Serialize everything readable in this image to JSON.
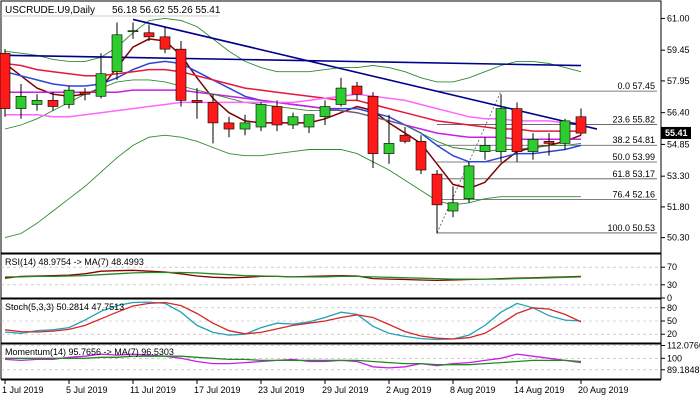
{
  "chart_data": {
    "type": "candlestick",
    "header": {
      "symbol": "USCRUDE.U9,Daily",
      "ohlc": "56.18 56.62 55.26 55.41"
    },
    "price_axis_labels": [
      "61.00",
      "59.45",
      "57.95",
      "56.40",
      "54.85",
      "53.30",
      "51.80",
      "50.30"
    ],
    "current_price_label": "55.41",
    "x_tick_labels": [
      {
        "i": 0,
        "label": "1 Jul 2019"
      },
      {
        "i": 4,
        "label": "5 Jul 2019"
      },
      {
        "i": 8,
        "label": "11 Jul 2019"
      },
      {
        "i": 12,
        "label": "17 Jul 2019"
      },
      {
        "i": 16,
        "label": "23 Jul 2019"
      },
      {
        "i": 20,
        "label": "29 Jul 2019"
      },
      {
        "i": 24,
        "label": "2 Aug 2019"
      },
      {
        "i": 28,
        "label": "8 Aug 2019"
      },
      {
        "i": 32,
        "label": "14 Aug 2019"
      },
      {
        "i": 36,
        "label": "20 Aug 2019"
      }
    ],
    "candles": [
      {
        "o": 59.3,
        "h": 59.5,
        "l": 56.2,
        "c": 56.6
      },
      {
        "o": 56.6,
        "h": 57.8,
        "l": 56.1,
        "c": 57.2
      },
      {
        "o": 56.8,
        "h": 57.3,
        "l": 56.5,
        "c": 57.0
      },
      {
        "o": 57.0,
        "h": 57.4,
        "l": 56.5,
        "c": 56.7
      },
      {
        "o": 56.8,
        "h": 57.7,
        "l": 56.6,
        "c": 57.5
      },
      {
        "o": 57.4,
        "h": 57.6,
        "l": 57.0,
        "c": 57.3
      },
      {
        "o": 57.2,
        "h": 59.3,
        "l": 57.1,
        "c": 58.3
      },
      {
        "o": 58.4,
        "h": 60.8,
        "l": 58.0,
        "c": 60.2
      },
      {
        "o": 60.4,
        "h": 60.8,
        "l": 60.0,
        "c": 60.4
      },
      {
        "o": 60.3,
        "h": 60.7,
        "l": 59.9,
        "c": 60.1
      },
      {
        "o": 60.1,
        "h": 60.6,
        "l": 59.3,
        "c": 59.5
      },
      {
        "o": 59.5,
        "h": 59.9,
        "l": 56.7,
        "c": 57.0
      },
      {
        "o": 57.0,
        "h": 57.6,
        "l": 56.1,
        "c": 56.9
      },
      {
        "o": 56.9,
        "h": 57.3,
        "l": 54.9,
        "c": 55.9
      },
      {
        "o": 55.9,
        "h": 56.2,
        "l": 55.2,
        "c": 55.6
      },
      {
        "o": 55.6,
        "h": 56.3,
        "l": 55.3,
        "c": 55.9
      },
      {
        "o": 55.7,
        "h": 56.9,
        "l": 55.5,
        "c": 56.8
      },
      {
        "o": 56.7,
        "h": 57.0,
        "l": 55.5,
        "c": 55.8
      },
      {
        "o": 55.8,
        "h": 56.4,
        "l": 55.6,
        "c": 56.2
      },
      {
        "o": 55.7,
        "h": 56.3,
        "l": 55.4,
        "c": 56.3
      },
      {
        "o": 56.2,
        "h": 57.0,
        "l": 55.8,
        "c": 56.7
      },
      {
        "o": 56.8,
        "h": 58.1,
        "l": 56.7,
        "c": 57.6
      },
      {
        "o": 57.7,
        "h": 57.9,
        "l": 57.0,
        "c": 57.3
      },
      {
        "o": 57.2,
        "h": 57.4,
        "l": 53.7,
        "c": 54.4
      },
      {
        "o": 54.4,
        "h": 56.3,
        "l": 53.9,
        "c": 54.9
      },
      {
        "o": 55.3,
        "h": 55.7,
        "l": 54.9,
        "c": 55.0
      },
      {
        "o": 55.0,
        "h": 55.3,
        "l": 53.4,
        "c": 53.6
      },
      {
        "o": 53.4,
        "h": 53.6,
        "l": 50.5,
        "c": 51.9
      },
      {
        "o": 51.6,
        "h": 52.8,
        "l": 51.3,
        "c": 52.0
      },
      {
        "o": 52.2,
        "h": 54.0,
        "l": 52.0,
        "c": 53.8
      },
      {
        "o": 54.5,
        "h": 55.2,
        "l": 54.1,
        "c": 54.8
      },
      {
        "o": 54.5,
        "h": 57.3,
        "l": 54.0,
        "c": 56.6
      },
      {
        "o": 56.6,
        "h": 56.9,
        "l": 54.0,
        "c": 54.5
      },
      {
        "o": 54.5,
        "h": 55.4,
        "l": 54.1,
        "c": 55.1
      },
      {
        "o": 55.0,
        "h": 55.4,
        "l": 54.3,
        "c": 54.9
      },
      {
        "o": 54.9,
        "h": 56.1,
        "l": 54.6,
        "c": 56.0
      },
      {
        "o": 56.2,
        "h": 56.6,
        "l": 55.3,
        "c": 55.4
      }
    ],
    "fib_levels": [
      {
        "price": 57.45,
        "label": "0.0 57.45"
      },
      {
        "price": 55.82,
        "label": "23.6 55.82"
      },
      {
        "price": 54.81,
        "label": "38.2 54.81"
      },
      {
        "price": 53.99,
        "label": "50.0 53.99"
      },
      {
        "price": 53.17,
        "label": "61.8 53.17"
      },
      {
        "price": 52.16,
        "label": "76.4 52.16"
      },
      {
        "price": 50.53,
        "label": "100.0 50.53"
      }
    ],
    "trendlines": [
      {
        "name": "downtrend",
        "color": "#00008b",
        "from": {
          "i": 8,
          "price": 60.95
        },
        "to": {
          "i": 37,
          "price": 55.6
        }
      },
      {
        "name": "horizontal",
        "color": "#00008b",
        "from": {
          "i": 0,
          "price": 59.2
        },
        "to": {
          "i": 36,
          "price": 58.7
        }
      }
    ],
    "overlays": [
      {
        "color": "#800000",
        "values": [
          58.8,
          58.2,
          57.6,
          57.3,
          57.2,
          57.3,
          57.6,
          58.6,
          59.6,
          60.0,
          59.9,
          59.2,
          58.1,
          57.1,
          56.4,
          56.0,
          55.9,
          55.9,
          55.9,
          55.9,
          56.1,
          56.4,
          56.7,
          56.5,
          55.9,
          55.4,
          54.9,
          53.9,
          52.9,
          52.7,
          53.0,
          53.9,
          54.5,
          54.7,
          54.8,
          55.0,
          55.3
        ]
      },
      {
        "color": "#2b46d6",
        "values": [
          58.4,
          58.2,
          58.0,
          57.8,
          57.7,
          57.7,
          57.8,
          58.1,
          58.5,
          58.8,
          58.9,
          58.8,
          58.4,
          58.0,
          57.6,
          57.2,
          57.0,
          56.9,
          56.8,
          56.7,
          56.6,
          56.6,
          56.6,
          56.4,
          56.2,
          55.8,
          55.4,
          54.8,
          54.3,
          54.0,
          54.0,
          54.2,
          54.4,
          54.4,
          54.5,
          54.6,
          54.8
        ]
      },
      {
        "color": "#e8173a",
        "values": [
          58.8,
          58.7,
          58.5,
          58.4,
          58.3,
          58.2,
          58.2,
          58.3,
          58.4,
          58.5,
          58.5,
          58.4,
          58.2,
          58.0,
          57.8,
          57.6,
          57.5,
          57.4,
          57.3,
          57.2,
          57.1,
          57.0,
          57.0,
          56.8,
          56.6,
          56.4,
          56.2,
          56.0,
          55.9,
          55.8,
          55.7,
          55.6,
          55.6,
          55.5,
          55.5,
          55.5,
          55.5
        ]
      },
      {
        "color": "#c81ee6",
        "values": [
          57.4,
          57.4,
          57.4,
          57.4,
          57.4,
          57.4,
          57.4,
          57.4,
          57.5,
          57.5,
          57.5,
          57.5,
          57.4,
          57.3,
          57.2,
          57.1,
          57.0,
          56.9,
          56.8,
          56.7,
          56.6,
          56.5,
          56.4,
          56.2,
          56.0,
          55.8,
          55.6,
          55.4,
          55.3,
          55.2,
          55.2,
          55.2,
          55.1,
          55.1,
          55.1,
          55.1,
          55.1
        ]
      },
      {
        "color": "#2e8b2e",
        "values": [
          55.6,
          55.8,
          56.1,
          56.5,
          56.9,
          57.3,
          57.6,
          57.9,
          58.0,
          58.0,
          57.9,
          57.7,
          57.5,
          57.3,
          57.1,
          56.9,
          56.8,
          56.7,
          56.6,
          56.5,
          56.5,
          56.5,
          56.4,
          56.2,
          56.0,
          55.8,
          55.4,
          55.0,
          54.7,
          54.6,
          54.5,
          54.6,
          54.6,
          54.7,
          54.8,
          54.8,
          54.9
        ]
      },
      {
        "color": "#ff66ff",
        "values": [
          56.3,
          56.3,
          56.3,
          56.2,
          56.2,
          56.3,
          56.4,
          56.5,
          56.6,
          56.7,
          56.8,
          56.9,
          56.9,
          56.9,
          56.9,
          56.9,
          56.9,
          56.9,
          56.9,
          57.0,
          57.1,
          57.2,
          57.3,
          57.2,
          57.1,
          57.0,
          56.8,
          56.6,
          56.4,
          56.2,
          56.1,
          56.1,
          56.0,
          56.0,
          56.0,
          55.9,
          55.9
        ]
      },
      {
        "color": "#2e8b2e",
        "values": [
          59.4,
          59.3,
          59.2,
          59.0,
          58.9,
          58.9,
          59.1,
          59.6,
          60.3,
          60.9,
          61.0,
          60.9,
          60.6,
          60.0,
          59.4,
          58.9,
          58.6,
          58.4,
          58.4,
          58.4,
          58.5,
          58.6,
          58.6,
          58.7,
          58.6,
          58.4,
          58.1,
          57.9,
          57.9,
          58.1,
          58.4,
          58.7,
          58.9,
          58.9,
          58.8,
          58.6,
          58.4
        ]
      },
      {
        "color": "#2e8b2e",
        "values": [
          50.3,
          50.5,
          51.0,
          51.6,
          52.2,
          52.8,
          53.5,
          54.2,
          54.8,
          55.2,
          55.3,
          55.2,
          55.0,
          54.7,
          54.4,
          54.3,
          54.3,
          54.4,
          54.5,
          54.6,
          54.6,
          54.6,
          54.4,
          54.0,
          53.6,
          53.1,
          52.6,
          52.1,
          51.9,
          52.0,
          52.2,
          52.3,
          52.3,
          52.3,
          52.3,
          52.3,
          52.3
        ]
      }
    ],
    "panels": [
      {
        "name": "rsi",
        "label": "RSI(14) 48.9754 -> MA(7) 48.4993",
        "min": 0,
        "max": 100,
        "ticks": [
          {
            "v": 70,
            "t": "70"
          },
          {
            "v": 30,
            "t": "30"
          },
          {
            "v": 0,
            "t": "0"
          }
        ],
        "lines": [
          {
            "color": "#8b0000",
            "values": [
              45,
              49,
              50,
              51,
              52,
              55,
              61,
              62,
              63,
              61,
              59,
              55,
              50,
              47,
              46,
              47,
              49,
              49,
              48,
              49,
              50,
              51,
              50,
              44,
              43,
              42,
              41,
              40,
              41,
              42,
              43,
              44,
              45,
              46,
              47,
              48,
              49
            ]
          },
          {
            "color": "#228b22",
            "values": [
              48,
              48,
              49,
              49,
              50,
              51,
              53,
              55,
              57,
              58,
              58,
              58,
              57,
              55,
              53,
              51,
              50,
              49,
              48,
              48,
              48,
              49,
              49,
              48,
              47,
              46,
              45,
              44,
              43,
              43,
              43,
              43,
              44,
              45,
              46,
              47,
              48
            ]
          }
        ]
      },
      {
        "name": "stoch",
        "label": "Stoch(5,3,3) 50.2814 47.7513",
        "min": 0,
        "max": 100,
        "ticks": [
          {
            "v": 80,
            "t": "80"
          },
          {
            "v": 50,
            "t": "50"
          },
          {
            "v": 20,
            "t": "20"
          }
        ],
        "lines": [
          {
            "color": "#1fa3b8",
            "values": [
              25,
              22,
              28,
              30,
              35,
              52,
              72,
              85,
              92,
              93,
              90,
              70,
              40,
              24,
              18,
              20,
              35,
              45,
              43,
              48,
              58,
              70,
              65,
              38,
              22,
              15,
              10,
              8,
              9,
              18,
              40,
              70,
              90,
              80,
              62,
              52,
              50
            ]
          },
          {
            "color": "#d62728",
            "values": [
              30,
              26,
              25,
              27,
              31,
              40,
              55,
              70,
              84,
              90,
              92,
              85,
              67,
              45,
              28,
              21,
              24,
              32,
              40,
              45,
              50,
              58,
              64,
              58,
              42,
              26,
              16,
              11,
              9,
              12,
              22,
              44,
              67,
              80,
              77,
              65,
              48
            ]
          }
        ]
      },
      {
        "name": "momentum",
        "label": "Momentum(14) 95.7656 -> MA(7) 96.5303",
        "min": 80.5,
        "max": 113.5,
        "ticks": [
          {
            "v": 112.0766,
            "t": "112.0766"
          },
          {
            "v": 100,
            "t": "100"
          },
          {
            "v": 89.1848,
            "t": "89.1848"
          }
        ],
        "lines": [
          {
            "color": "#c81ee6",
            "values": [
              99,
              98,
              99,
              99,
              101,
              102,
              104,
              103,
              104,
              103,
              102,
              100,
              97,
              95,
              95,
              96,
              97,
              98,
              99,
              97,
              97,
              98,
              97,
              92,
              91,
              92,
              95,
              93,
              95,
              96,
              98,
              100,
              104,
              102,
              100,
              98,
              96
            ]
          },
          {
            "color": "#228b22",
            "values": [
              100,
              100,
              100,
              100,
              100,
              100,
              101,
              101,
              102,
              102,
              102,
              102,
              101,
              100,
              99,
              99,
              98,
              98,
              98,
              98,
              98,
              98,
              98,
              97,
              96,
              95,
              95,
              94,
              94,
              94,
              95,
              96,
              97,
              98,
              98,
              98,
              97
            ]
          }
        ]
      }
    ]
  }
}
